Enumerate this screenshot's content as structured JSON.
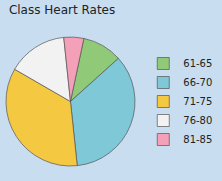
{
  "chart_data": {
    "type": "pie",
    "title": "Class Heart Rates",
    "categories": [
      "61-65",
      "66-70",
      "71-75",
      "76-80",
      "81-85"
    ],
    "values": [
      10,
      35,
      35,
      15,
      5
    ],
    "colors": [
      "#90c978",
      "#7ec8d8",
      "#f5c842",
      "#f2f2f2",
      "#f4a0b8"
    ],
    "legend": "right"
  }
}
